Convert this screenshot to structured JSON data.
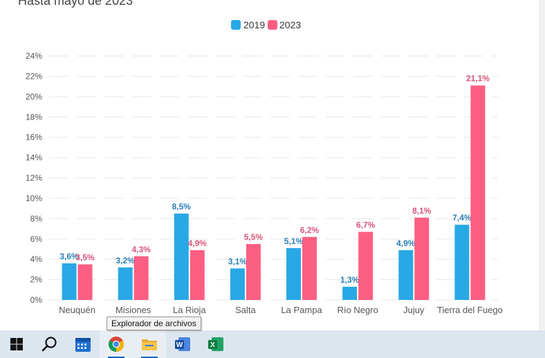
{
  "subtitle": "Hasta mayo de 2023",
  "tooltip": "Explorador de archivos",
  "colors": {
    "y2019": "#29a8e6",
    "y2023": "#fd5f83",
    "label2019": "#2a7fb5",
    "label2023": "#d9557a",
    "grid": "#e6e6e6",
    "axis_text": "#555555"
  },
  "chart_data": {
    "type": "bar",
    "title": "",
    "categories": [
      "Neuquén",
      "Misiones",
      "La Rioja",
      "Salta",
      "La Pampa",
      "Río Negro",
      "Jujuy",
      "Tierra del Fuego"
    ],
    "series": [
      {
        "name": "2019",
        "values": [
          3.6,
          3.2,
          8.5,
          3.1,
          5.1,
          1.3,
          4.9,
          7.4
        ],
        "labels": [
          "3,6%",
          "3,2%",
          "8,5%",
          "3,1%",
          "5,1%",
          "1,3%",
          "4,9%",
          "7,4%"
        ]
      },
      {
        "name": "2023",
        "values": [
          3.5,
          4.3,
          4.9,
          5.5,
          6.2,
          6.7,
          8.1,
          21.1
        ],
        "labels": [
          "3,5%",
          "4,3%",
          "4,9%",
          "5,5%",
          "6,2%",
          "6,7%",
          "8,1%",
          "21,1%"
        ]
      }
    ],
    "yticks": [
      "0%",
      "2%",
      "4%",
      "6%",
      "8%",
      "10%",
      "12%",
      "14%",
      "16%",
      "18%",
      "20%",
      "22%",
      "24%"
    ],
    "ylim": [
      0,
      24
    ],
    "legend": "top-center",
    "grid": true
  },
  "taskbar": {
    "items": [
      {
        "name": "windows-start-icon"
      },
      {
        "name": "search-icon"
      },
      {
        "name": "calendar-app-icon"
      },
      {
        "name": "chrome-icon",
        "active": true
      },
      {
        "name": "file-explorer-icon",
        "active": true
      },
      {
        "name": "word-icon"
      },
      {
        "name": "excel-icon"
      }
    ]
  }
}
